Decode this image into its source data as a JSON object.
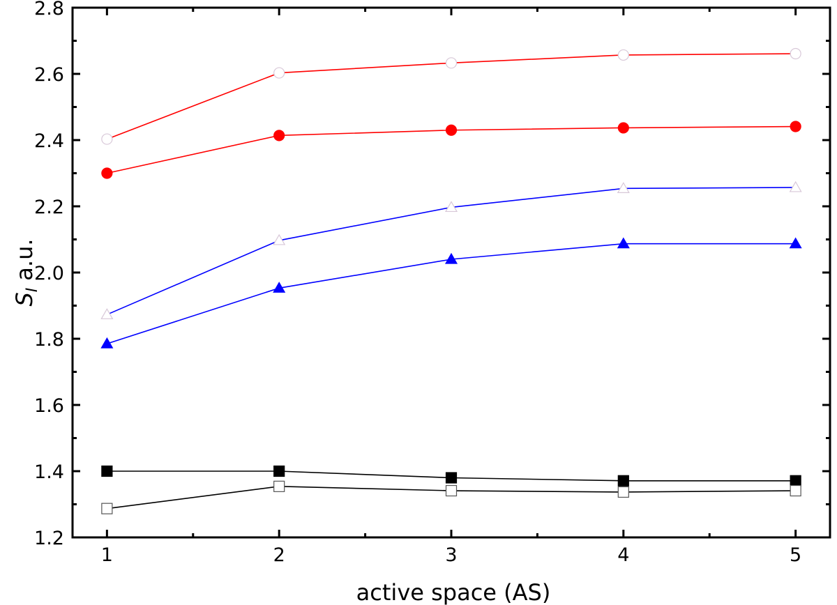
{
  "chart_data": {
    "type": "line",
    "title": "",
    "xlabel": "active space (AS)",
    "ylabel_symbol": "S",
    "ylabel_subscript": "I",
    "ylabel_unit": "a.u.",
    "xlim": [
      0.8,
      5.2
    ],
    "ylim": [
      1.2,
      2.8
    ],
    "x": [
      1,
      2,
      3,
      4,
      5
    ],
    "x_ticks": [
      "1",
      "2",
      "3",
      "4",
      "5"
    ],
    "y_ticks": [
      "1.2",
      "1.4",
      "1.6",
      "1.8",
      "2.0",
      "2.2",
      "2.4",
      "2.6",
      "2.8"
    ],
    "grid": false,
    "legend": "none",
    "series": [
      {
        "color": "#ff0000",
        "marker": "circle",
        "filled": false,
        "values": [
          2.403,
          2.603,
          2.633,
          2.657,
          2.661
        ]
      },
      {
        "color": "#ff0000",
        "marker": "circle",
        "filled": true,
        "values": [
          2.3,
          2.414,
          2.43,
          2.437,
          2.441
        ]
      },
      {
        "color": "#0000ff",
        "marker": "triangle",
        "filled": false,
        "values": [
          1.873,
          2.097,
          2.197,
          2.254,
          2.257
        ]
      },
      {
        "color": "#0000ff",
        "marker": "triangle",
        "filled": true,
        "values": [
          1.785,
          1.953,
          2.04,
          2.087,
          2.087
        ]
      },
      {
        "color": "#000000",
        "marker": "square",
        "filled": true,
        "values": [
          1.4,
          1.4,
          1.38,
          1.371,
          1.371
        ]
      },
      {
        "color": "#000000",
        "marker": "square",
        "filled": false,
        "values": [
          1.287,
          1.354,
          1.341,
          1.337,
          1.341
        ]
      }
    ]
  }
}
